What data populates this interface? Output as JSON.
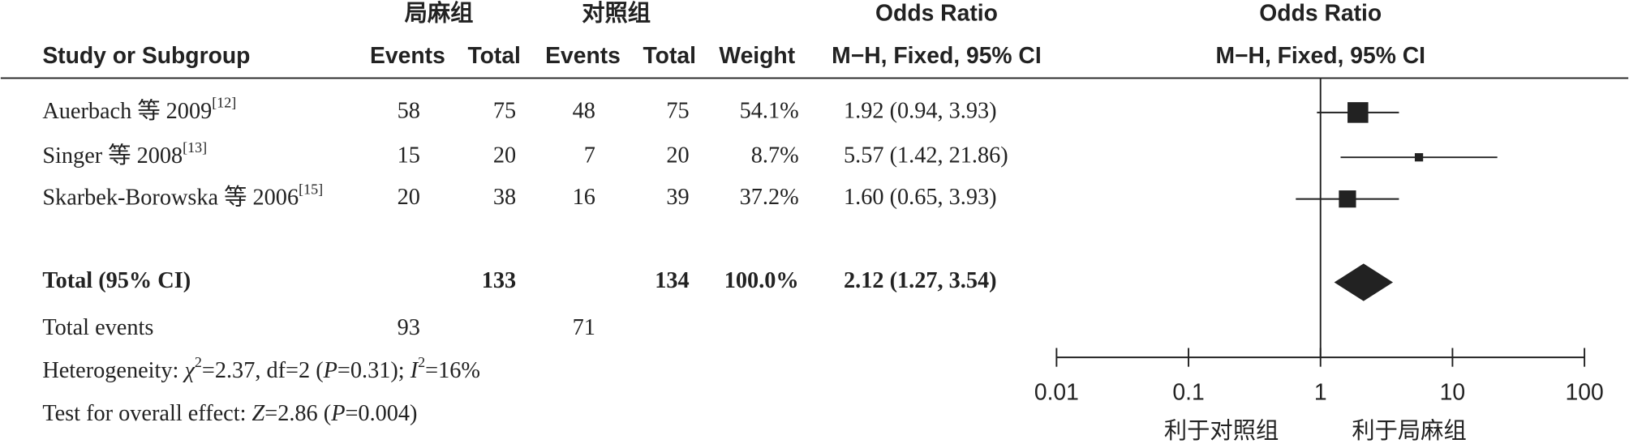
{
  "chart_data": {
    "type": "forest",
    "group_headers": [
      "局麻组",
      "对照组"
    ],
    "columns": [
      "Study or Subgroup",
      "Events",
      "Total",
      "Events",
      "Total",
      "Weight"
    ],
    "or_header": {
      "title": "Odds Ratio",
      "subtitle": "M−H, Fixed, 95% CI"
    },
    "plot_header": {
      "title": "Odds Ratio",
      "subtitle": "M−H, Fixed, 95% CI"
    },
    "rows": [
      {
        "name": "Auerbach 等 2009",
        "ref": "[12]",
        "events1": 58,
        "total1": 75,
        "events2": 48,
        "total2": 75,
        "weight": 54.1,
        "weight_label": "54.1%",
        "or": 1.92,
        "lo": 0.94,
        "hi": 3.93,
        "ci_label": "1.92 (0.94, 3.93)"
      },
      {
        "name": "Singer 等 2008",
        "ref": "[13]",
        "events1": 15,
        "total1": 20,
        "events2": 7,
        "total2": 20,
        "weight": 8.7,
        "weight_label": "8.7%",
        "or": 5.57,
        "lo": 1.42,
        "hi": 21.86,
        "ci_label": "5.57 (1.42, 21.86)"
      },
      {
        "name": "Skarbek-Borowska 等 2006",
        "ref": "[15]",
        "events1": 20,
        "total1": 38,
        "events2": 16,
        "total2": 39,
        "weight": 37.2,
        "weight_label": "37.2%",
        "or": 1.6,
        "lo": 0.65,
        "hi": 3.93,
        "ci_label": "1.60 (0.65, 3.93)"
      }
    ],
    "total": {
      "name": "Total (95% CI)",
      "total1": 133,
      "total2": 134,
      "weight_label": "100.0%",
      "or": 2.12,
      "lo": 1.27,
      "hi": 3.54,
      "ci_label": "2.12 (1.27, 3.54)"
    },
    "total_events": {
      "name": "Total events",
      "events1": 93,
      "events2": 71
    },
    "heterogeneity": [
      "Heterogeneity: ",
      "χ",
      "2",
      "=2.37, df=2 (",
      "P",
      "=0.31); ",
      "I",
      "2",
      "=16%"
    ],
    "overall_effect": [
      "Test for overall effect: ",
      "Z",
      "=2.86 (",
      "P",
      "=0.004)"
    ],
    "xscale": "log",
    "xlim": [
      0.01,
      100
    ],
    "xticks": [
      0.01,
      0.1,
      1,
      10,
      100
    ],
    "favours": [
      "利于对照组",
      "利于局麻组"
    ],
    "color": "#222222"
  }
}
